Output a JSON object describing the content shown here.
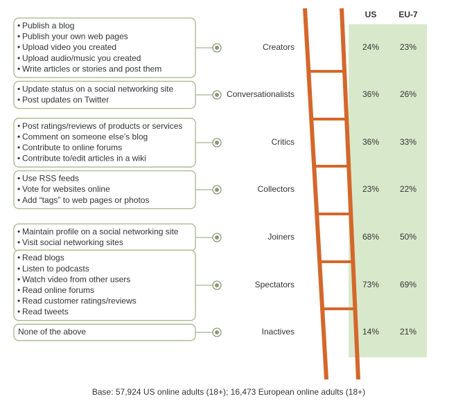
{
  "columns": [
    "US",
    "EU-7"
  ],
  "rows": [
    {
      "activities": [
        "Publish a blog",
        "Publish your own web pages",
        "Upload video you created",
        "Upload audio/music you created",
        "Write articles or stories and post them"
      ],
      "label": "Creators",
      "values": [
        "24%",
        "23%"
      ]
    },
    {
      "activities": [
        "Update status on a social networking site",
        "Post updates on Twitter"
      ],
      "label": "Conversationalists",
      "values": [
        "36%",
        "26%"
      ]
    },
    {
      "activities": [
        "Post ratings/reviews of products or services",
        "Comment on someone else’s blog",
        "Contribute to online forums",
        "Contribute to/edit articles in a wiki"
      ],
      "label": "Critics",
      "values": [
        "36%",
        "33%"
      ]
    },
    {
      "activities": [
        "Use RSS feeds",
        "Vote for websites online",
        "Add “tags” to web pages or photos"
      ],
      "label": "Collectors",
      "values": [
        "23%",
        "22%"
      ]
    },
    {
      "activities": [
        "Maintain profile on a social networking site",
        "Visit social networking sites"
      ],
      "label": "Joiners",
      "values": [
        "68%",
        "50%"
      ]
    },
    {
      "activities": [
        "Read blogs",
        "Listen to podcasts",
        "Watch video from other users",
        "Read online forums",
        "Read customer ratings/reviews",
        "Read tweets"
      ],
      "label": "Spectators",
      "values": [
        "73%",
        "69%"
      ]
    },
    {
      "activities": [
        "None of the above"
      ],
      "label": "Inactives",
      "values": [
        "14%",
        "21%"
      ]
    }
  ],
  "footer": "Base: 57,924 US online adults (18+); 16,473 European online adults (18+)"
}
